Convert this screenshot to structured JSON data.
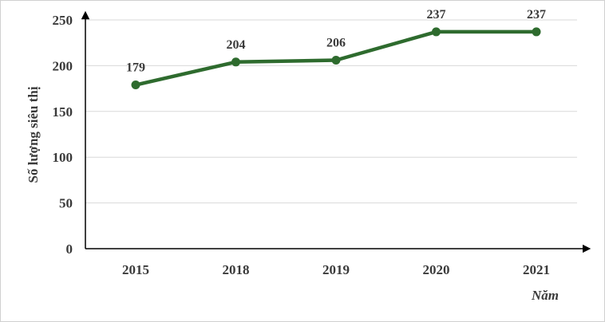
{
  "chart_data": {
    "type": "line",
    "categories": [
      "2015",
      "2018",
      "2019",
      "2020",
      "2021"
    ],
    "series": [
      {
        "values": [
          179,
          204,
          206,
          237,
          237
        ]
      }
    ],
    "data_labels": [
      "179",
      "204",
      "206",
      "237",
      "237"
    ],
    "xlabel": "Năm",
    "ylabel": "Số lượng siêu thị",
    "ylim": [
      0,
      250
    ],
    "yticks": [
      "0",
      "50",
      "100",
      "150",
      "200",
      "250"
    ],
    "ytick_values": [
      0,
      50,
      100,
      150,
      200,
      250
    ],
    "grid": "horizontal",
    "line_color": "#2e6b2e"
  }
}
